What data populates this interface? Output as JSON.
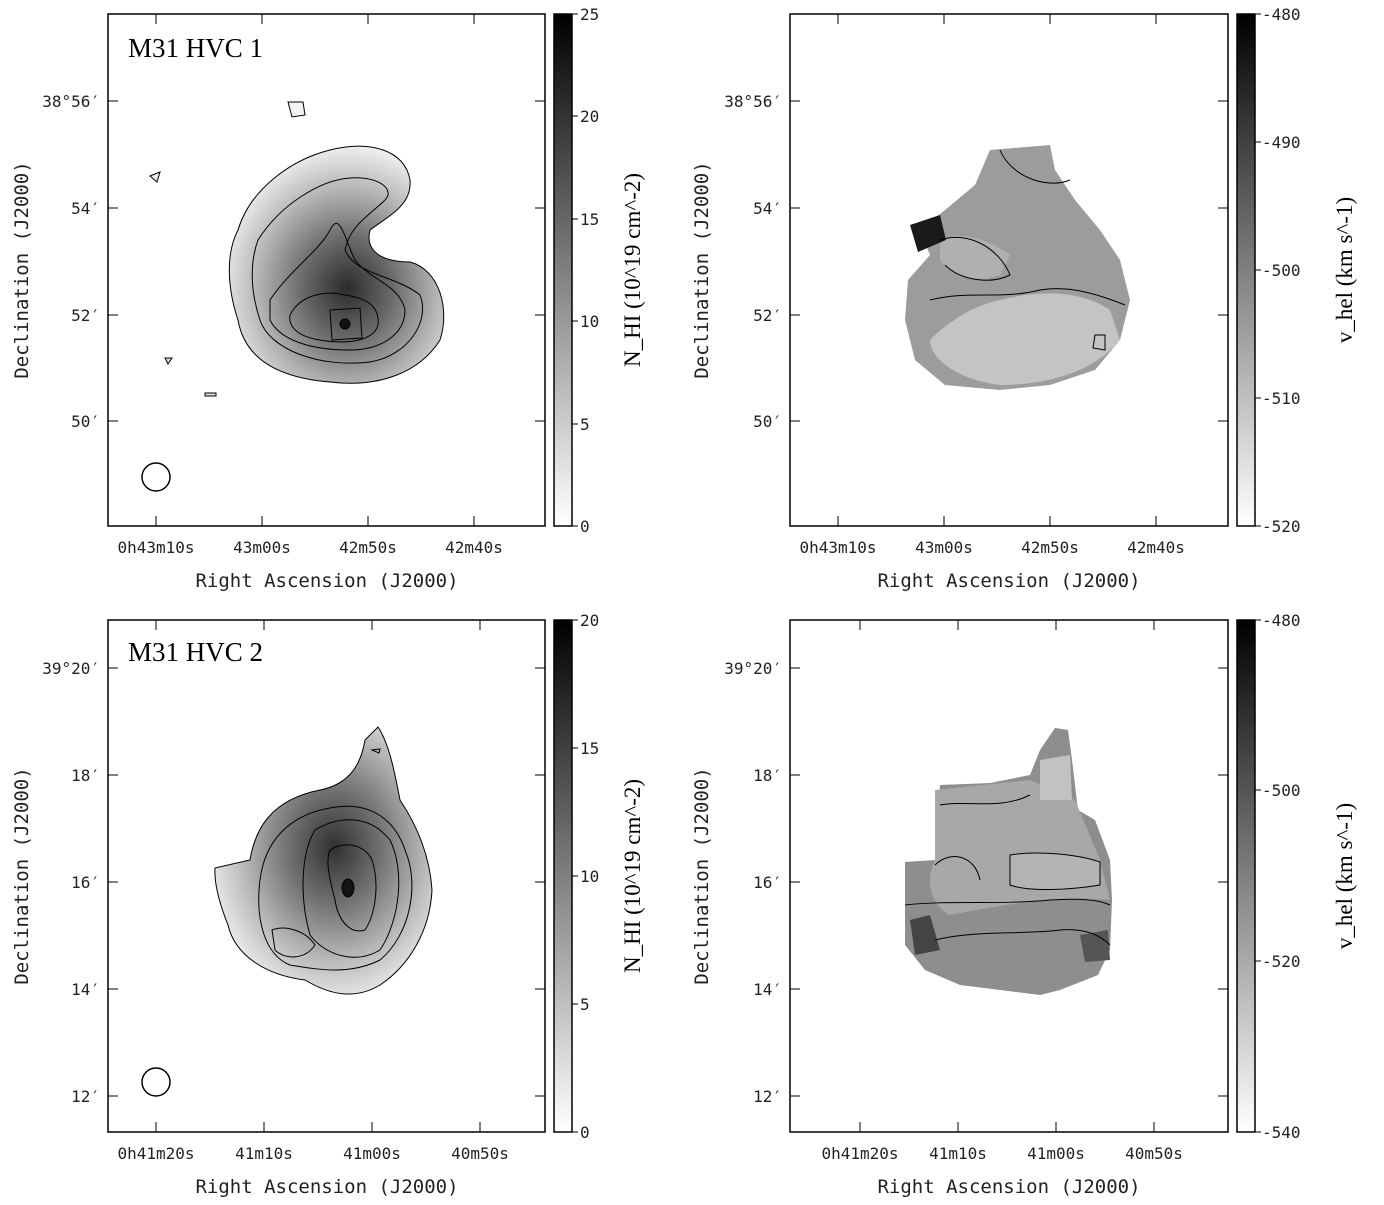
{
  "figure": {
    "panels": [
      {
        "id": "hvc1-nhi",
        "title": "M31 HVC 1",
        "xlabel": "Right Ascension (J2000)",
        "ylabel": "Declination (J2000)",
        "xticks": [
          "0h43m10s",
          "43m00s",
          "42m50s",
          "42m40s"
        ],
        "yticks": [
          "38°56′",
          "54′",
          "52′",
          "50′"
        ],
        "colorbar": {
          "label": "N_HI (10^19 cm^-2)",
          "ticks": [
            "25",
            "20",
            "15",
            "10",
            "5",
            "0"
          ],
          "range": [
            0,
            25
          ]
        },
        "beam": true
      },
      {
        "id": "hvc1-vel",
        "title": "",
        "xlabel": "Right Ascension (J2000)",
        "ylabel": "Declination (J2000)",
        "xticks": [
          "0h43m10s",
          "43m00s",
          "42m50s",
          "42m40s"
        ],
        "yticks": [
          "38°56′",
          "54′",
          "52′",
          "50′"
        ],
        "colorbar": {
          "label": "v_hel (km s^-1)",
          "ticks": [
            "-480",
            "-490",
            "-500",
            "-510",
            "-520"
          ],
          "range": [
            -520,
            -480
          ]
        },
        "beam": false
      },
      {
        "id": "hvc2-nhi",
        "title": "M31 HVC 2",
        "xlabel": "Right Ascension (J2000)",
        "ylabel": "Declination (J2000)",
        "xticks": [
          "0h41m20s",
          "41m10s",
          "41m00s",
          "40m50s"
        ],
        "yticks": [
          "39°20′",
          "18′",
          "16′",
          "14′",
          "12′"
        ],
        "colorbar": {
          "label": "N_HI (10^19 cm^-2)",
          "ticks": [
            "20",
            "15",
            "10",
            "5",
            "0"
          ],
          "range": [
            0,
            20
          ]
        },
        "beam": true
      },
      {
        "id": "hvc2-vel",
        "title": "",
        "xlabel": "Right Ascension (J2000)",
        "ylabel": "Declination (J2000)",
        "xticks": [
          "0h41m20s",
          "41m10s",
          "41m00s",
          "40m50s"
        ],
        "yticks": [
          "39°20′",
          "18′",
          "16′",
          "14′",
          "12′"
        ],
        "colorbar": {
          "label": "v_hel (km s^-1)",
          "ticks": [
            "-480",
            "-500",
            "-520",
            "-540"
          ],
          "range": [
            -540,
            -480
          ]
        },
        "beam": false
      }
    ]
  }
}
